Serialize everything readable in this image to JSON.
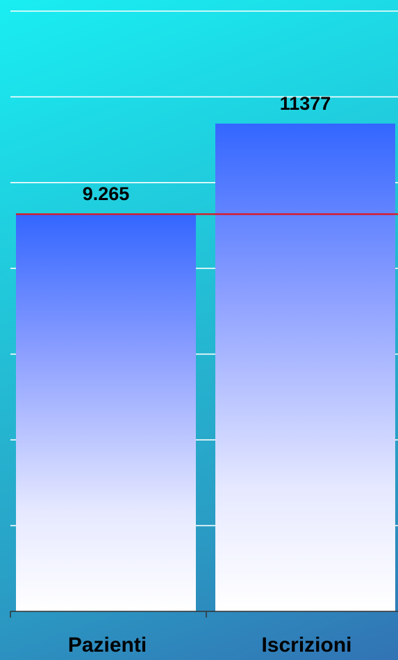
{
  "chart_data": {
    "type": "bar",
    "categories": [
      "Pazienti",
      "Iscrizioni"
    ],
    "values": [
      9265,
      11377
    ],
    "data_labels": [
      "9.265",
      "11377"
    ],
    "title": "",
    "xlabel": "",
    "ylabel": "",
    "ylim": [
      0,
      14000
    ],
    "gridlines": [
      2000,
      4000,
      6000,
      8000,
      10000,
      12000,
      14000
    ],
    "reference_line": {
      "value": 9265
    },
    "grid": true,
    "legend": "none",
    "colors": {
      "bar_top": "#3366ff",
      "bar_bottom": "#ffffff",
      "reference_line": "#e0141e",
      "gridline": "#ffffff",
      "axis": "#333333",
      "text": "#000000"
    }
  }
}
